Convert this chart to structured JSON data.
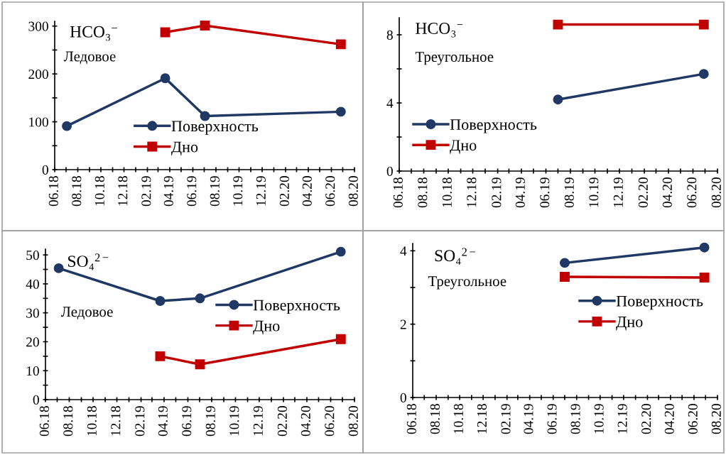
{
  "chart_data": [
    {
      "type": "line",
      "annotations": [
        "HCO₃$^{−}$",
        "Ледовое"
      ],
      "legend": "bottom",
      "grid": false,
      "xlim": [
        "2018-06-01",
        "2020-08-01"
      ],
      "ylim": [
        0,
        310
      ],
      "xticks": [
        {
          "value": "2018-06-01",
          "label": "06.18"
        },
        {
          "value": "2018-07-01",
          "label": null
        },
        {
          "value": "2018-08-01",
          "label": "08.18"
        },
        {
          "value": "2018-09-01",
          "label": null
        },
        {
          "value": "2018-10-01",
          "label": "10.18"
        },
        {
          "value": "2018-11-01",
          "label": null
        },
        {
          "value": "2018-12-01",
          "label": "12.18"
        },
        {
          "value": "2019-01-01",
          "label": null
        },
        {
          "value": "2019-02-01",
          "label": "02.19"
        },
        {
          "value": "2019-03-01",
          "label": null
        },
        {
          "value": "2019-04-01",
          "label": "04.19"
        },
        {
          "value": "2019-05-01",
          "label": null
        },
        {
          "value": "2019-06-01",
          "label": "06.19"
        },
        {
          "value": "2019-07-01",
          "label": null
        },
        {
          "value": "2019-08-01",
          "label": "08.19"
        },
        {
          "value": "2019-09-01",
          "label": null
        },
        {
          "value": "2019-10-01",
          "label": "10.19"
        },
        {
          "value": "2019-11-01",
          "label": null
        },
        {
          "value": "2019-12-01",
          "label": "12.19"
        },
        {
          "value": "2020-01-01",
          "label": null
        },
        {
          "value": "2020-02-01",
          "label": "02.20"
        },
        {
          "value": "2020-03-01",
          "label": null
        },
        {
          "value": "2020-04-01",
          "label": "04.20"
        },
        {
          "value": "2020-05-01",
          "label": null
        },
        {
          "value": "2020-06-01",
          "label": "06.20"
        },
        {
          "value": "2020-07-01",
          "label": null
        },
        {
          "value": "2020-08-01",
          "label": "08.20"
        }
      ],
      "yticks": [
        0,
        {
          "value": 50,
          "label": null
        },
        100,
        {
          "value": 150,
          "label": null
        },
        200,
        {
          "value": 250,
          "label": null
        },
        300
      ],
      "series": [
        {
          "name": "Поверхность",
          "color": "#1f3864",
          "marker": "circle",
          "x": [
            "2018-07-03",
            "2019-03-20",
            "2019-07-03",
            "2020-06-26"
          ],
          "values": [
            91,
            191,
            112,
            121
          ]
        },
        {
          "name": "Дно",
          "color": "#c00000",
          "marker": "square",
          "x": [
            "2019-03-20",
            "2019-07-03",
            "2020-06-26"
          ],
          "values": [
            287,
            301,
            262
          ]
        }
      ]
    },
    {
      "type": "line",
      "annotations": [
        "HCO₃$^{−}$",
        "Треугольное"
      ],
      "legend": "bottom left",
      "grid": false,
      "xlim": [
        "2018-06-01",
        "2020-08-01"
      ],
      "ylim": [
        0,
        9
      ],
      "xticks": [
        {
          "value": "2018-06-01",
          "label": "06.18"
        },
        {
          "value": "2018-07-01",
          "label": null
        },
        {
          "value": "2018-08-01",
          "label": "08.18"
        },
        {
          "value": "2018-09-01",
          "label": null
        },
        {
          "value": "2018-10-01",
          "label": "10.18"
        },
        {
          "value": "2018-11-01",
          "label": null
        },
        {
          "value": "2018-12-01",
          "label": "12.18"
        },
        {
          "value": "2019-01-01",
          "label": null
        },
        {
          "value": "2019-02-01",
          "label": "02.19"
        },
        {
          "value": "2019-03-01",
          "label": null
        },
        {
          "value": "2019-04-01",
          "label": "04.19"
        },
        {
          "value": "2019-05-01",
          "label": null
        },
        {
          "value": "2019-06-01",
          "label": "06.19"
        },
        {
          "value": "2019-07-01",
          "label": null
        },
        {
          "value": "2019-08-01",
          "label": "08.19"
        },
        {
          "value": "2019-09-01",
          "label": null
        },
        {
          "value": "2019-10-01",
          "label": "10.19"
        },
        {
          "value": "2019-11-01",
          "label": null
        },
        {
          "value": "2019-12-01",
          "label": "12.19"
        },
        {
          "value": "2020-01-01",
          "label": null
        },
        {
          "value": "2020-02-01",
          "label": "02.20"
        },
        {
          "value": "2020-03-01",
          "label": null
        },
        {
          "value": "2020-04-01",
          "label": "04.20"
        },
        {
          "value": "2020-05-01",
          "label": null
        },
        {
          "value": "2020-06-01",
          "label": "06.20"
        },
        {
          "value": "2020-07-01",
          "label": null
        },
        {
          "value": "2020-08-01",
          "label": "08.20"
        }
      ],
      "yticks": [
        0,
        {
          "value": 2,
          "label": null
        },
        4,
        {
          "value": 6,
          "label": null
        },
        8
      ],
      "series": [
        {
          "name": "Поверхность",
          "color": "#1f3864",
          "marker": "circle",
          "x": [
            "2019-07-01",
            "2020-06-28"
          ],
          "values": [
            4.2,
            5.7
          ]
        },
        {
          "name": "Дно",
          "color": "#c00000",
          "marker": "square",
          "x": [
            "2019-07-01",
            "2020-06-28"
          ],
          "values": [
            8.6,
            8.6
          ]
        }
      ]
    },
    {
      "type": "line",
      "annotations": [
        "SO₄$^{2−}$",
        "Ледовое"
      ],
      "legend": "right",
      "grid": false,
      "xlim": [
        "2018-06-01",
        "2020-08-01"
      ],
      "ylim": [
        0,
        52
      ],
      "xticks": [
        {
          "value": "2018-06-01",
          "label": "06.18"
        },
        {
          "value": "2018-07-01",
          "label": null
        },
        {
          "value": "2018-08-01",
          "label": "08.18"
        },
        {
          "value": "2018-09-01",
          "label": null
        },
        {
          "value": "2018-10-01",
          "label": "10.18"
        },
        {
          "value": "2018-11-01",
          "label": null
        },
        {
          "value": "2018-12-01",
          "label": "12.18"
        },
        {
          "value": "2019-01-01",
          "label": null
        },
        {
          "value": "2019-02-01",
          "label": "02.19"
        },
        {
          "value": "2019-03-01",
          "label": null
        },
        {
          "value": "2019-04-01",
          "label": "04.19"
        },
        {
          "value": "2019-05-01",
          "label": null
        },
        {
          "value": "2019-06-01",
          "label": "06.19"
        },
        {
          "value": "2019-07-01",
          "label": null
        },
        {
          "value": "2019-08-01",
          "label": "08.19"
        },
        {
          "value": "2019-09-01",
          "label": null
        },
        {
          "value": "2019-10-01",
          "label": "10.19"
        },
        {
          "value": "2019-11-01",
          "label": null
        },
        {
          "value": "2019-12-01",
          "label": "12.19"
        },
        {
          "value": "2020-01-01",
          "label": null
        },
        {
          "value": "2020-02-01",
          "label": "02.20"
        },
        {
          "value": "2020-03-01",
          "label": null
        },
        {
          "value": "2020-04-01",
          "label": "04.20"
        },
        {
          "value": "2020-05-01",
          "label": null
        },
        {
          "value": "2020-06-01",
          "label": "06.20"
        },
        {
          "value": "2020-07-01",
          "label": null
        },
        {
          "value": "2020-08-01",
          "label": "08.20"
        }
      ],
      "yticks": [
        0,
        {
          "value": 5,
          "label": null
        },
        10,
        {
          "value": 15,
          "label": null
        },
        20,
        {
          "value": 25,
          "label": null
        },
        30,
        {
          "value": 35,
          "label": null
        },
        40,
        {
          "value": 45,
          "label": null
        },
        50
      ],
      "series": [
        {
          "name": "Поверхность",
          "color": "#1f3864",
          "marker": "circle",
          "x": [
            "2018-07-05",
            "2019-03-22",
            "2019-07-02",
            "2020-06-27"
          ],
          "values": [
            45.4,
            34.1,
            35.0,
            51.1
          ]
        },
        {
          "name": "Дно",
          "color": "#c00000",
          "marker": "square",
          "x": [
            "2019-03-22",
            "2019-07-02",
            "2020-06-27"
          ],
          "values": [
            15.0,
            12.2,
            20.9
          ]
        }
      ]
    },
    {
      "type": "line",
      "annotations": [
        "SO₄$^{2−}$",
        "Треугольное"
      ],
      "legend": "right",
      "grid": false,
      "xlim": [
        "2018-06-01",
        "2020-08-01"
      ],
      "ylim": [
        0,
        4.2
      ],
      "xticks": [
        {
          "value": "2018-06-01",
          "label": "06.18"
        },
        {
          "value": "2018-07-01",
          "label": null
        },
        {
          "value": "2018-08-01",
          "label": "08.18"
        },
        {
          "value": "2018-09-01",
          "label": null
        },
        {
          "value": "2018-10-01",
          "label": "10.18"
        },
        {
          "value": "2018-11-01",
          "label": null
        },
        {
          "value": "2018-12-01",
          "label": "12.18"
        },
        {
          "value": "2019-01-01",
          "label": null
        },
        {
          "value": "2019-02-01",
          "label": "02.19"
        },
        {
          "value": "2019-03-01",
          "label": null
        },
        {
          "value": "2019-04-01",
          "label": "04.19"
        },
        {
          "value": "2019-05-01",
          "label": null
        },
        {
          "value": "2019-06-01",
          "label": "06.19"
        },
        {
          "value": "2019-07-01",
          "label": null
        },
        {
          "value": "2019-08-01",
          "label": "08.19"
        },
        {
          "value": "2019-09-01",
          "label": null
        },
        {
          "value": "2019-10-01",
          "label": "10.19"
        },
        {
          "value": "2019-11-01",
          "label": null
        },
        {
          "value": "2019-12-01",
          "label": "12.19"
        },
        {
          "value": "2020-01-01",
          "label": null
        },
        {
          "value": "2020-02-01",
          "label": "02.20"
        },
        {
          "value": "2020-03-01",
          "label": null
        },
        {
          "value": "2020-04-01",
          "label": "04.20"
        },
        {
          "value": "2020-05-01",
          "label": null
        },
        {
          "value": "2020-06-01",
          "label": "06.20"
        },
        {
          "value": "2020-07-01",
          "label": null
        },
        {
          "value": "2020-08-01",
          "label": "08.20"
        }
      ],
      "yticks": [
        0,
        {
          "value": 1,
          "label": null
        },
        2,
        {
          "value": 3,
          "label": null
        },
        4
      ],
      "series": [
        {
          "name": "Поверхность",
          "color": "#1f3864",
          "marker": "circle",
          "x": [
            "2019-07-01",
            "2020-06-28"
          ],
          "values": [
            3.67,
            4.09
          ]
        },
        {
          "name": "Дно",
          "color": "#c00000",
          "marker": "square",
          "x": [
            "2019-07-01",
            "2020-06-28"
          ],
          "values": [
            3.29,
            3.27
          ]
        }
      ]
    }
  ]
}
